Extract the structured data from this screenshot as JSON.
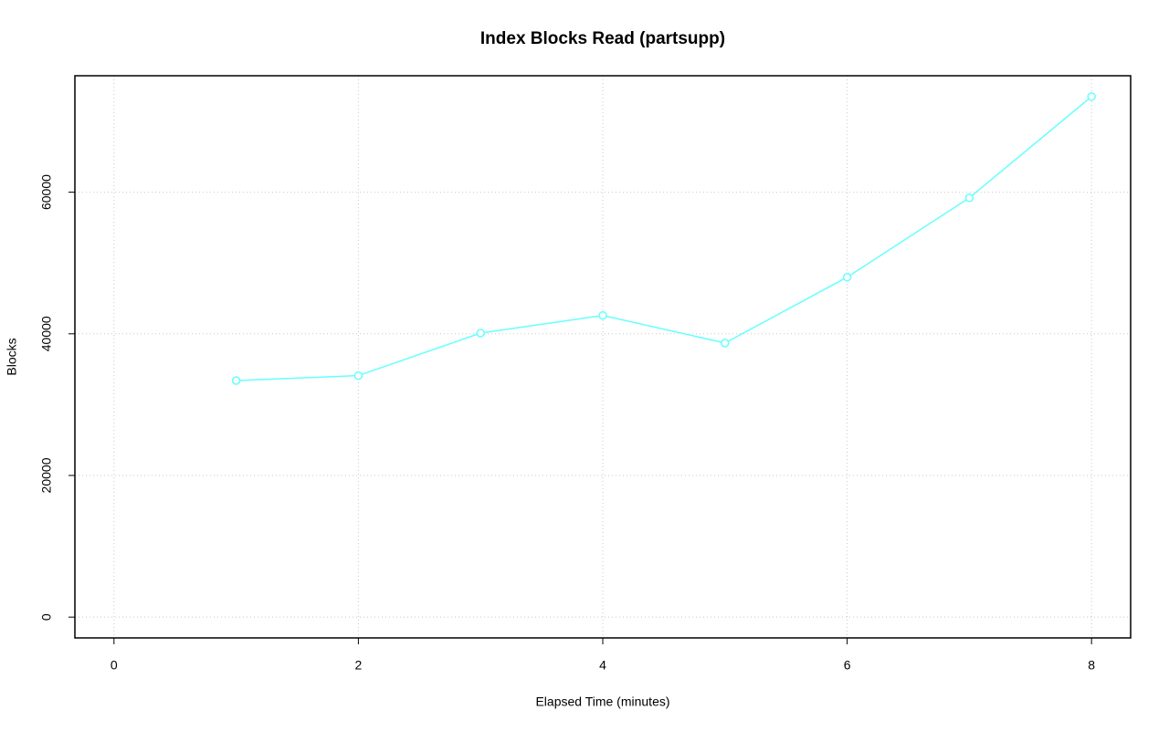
{
  "chart_data": {
    "type": "line",
    "title": "Index Blocks Read (partsupp)",
    "x_label": "Elapsed Time (minutes)",
    "y_label": "Blocks",
    "x": [
      1,
      2,
      3,
      4,
      5,
      6,
      7,
      8
    ],
    "series": [
      {
        "name": "partsupp",
        "color": "#66ffff",
        "values": [
          33400,
          34100,
          40100,
          42600,
          38700,
          48000,
          59200,
          73500
        ]
      }
    ],
    "xlim": [
      -0.32,
      8.32
    ],
    "xticks": [
      0,
      2,
      4,
      6,
      8
    ],
    "ylim": [
      -2940,
      76440
    ],
    "yticks": [
      0,
      20000,
      40000,
      60000
    ],
    "grid": true
  }
}
